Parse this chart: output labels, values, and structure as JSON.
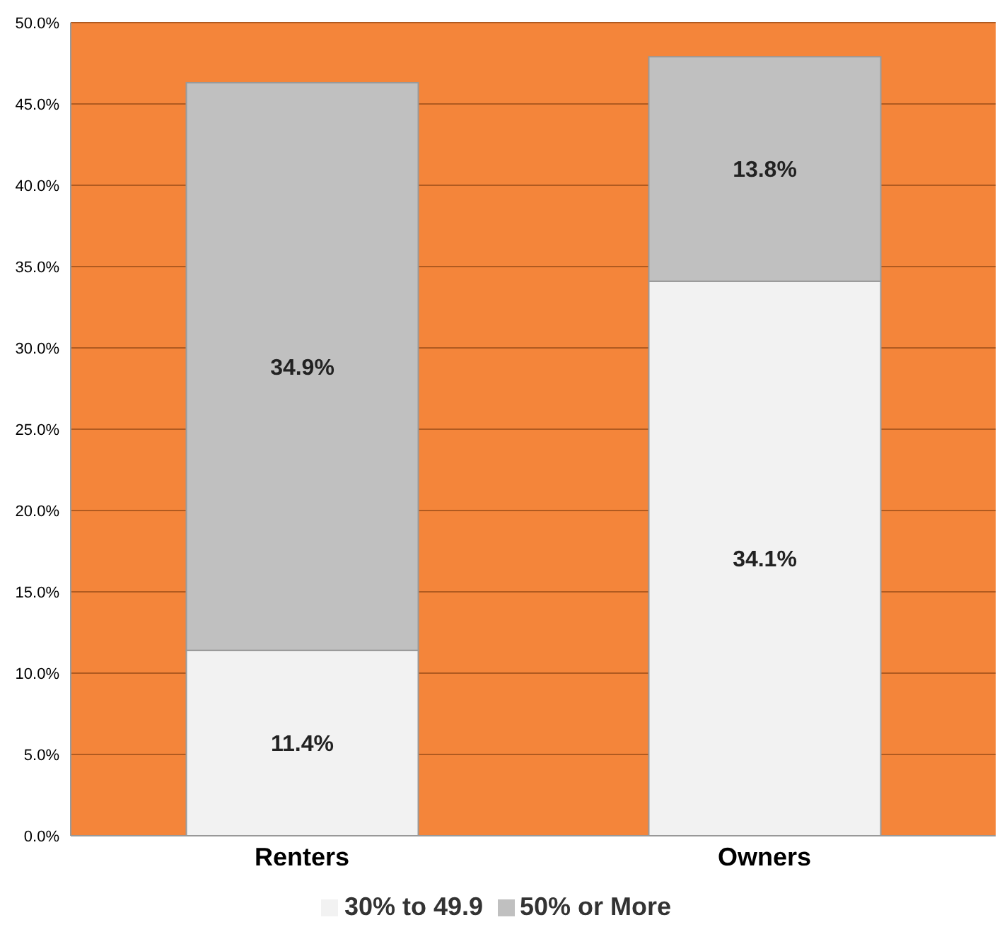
{
  "chart_data": {
    "type": "bar",
    "stacked": true,
    "categories": [
      "Renters",
      "Owners"
    ],
    "series": [
      {
        "name": "30% to 49.9",
        "color": "#f2f2f2",
        "values": [
          11.4,
          34.1
        ],
        "value_labels": [
          "11.4%",
          "34.1%"
        ]
      },
      {
        "name": "50% or More",
        "color": "#c0c0c0",
        "values": [
          34.9,
          13.8
        ],
        "value_labels": [
          "34.9%",
          "13.8%"
        ]
      }
    ],
    "ylim": [
      0,
      50
    ],
    "yticks": [
      {
        "value": 0,
        "label": "0.0%"
      },
      {
        "value": 5,
        "label": "5.0%"
      },
      {
        "value": 10,
        "label": "10.0%"
      },
      {
        "value": 15,
        "label": "15.0%"
      },
      {
        "value": 20,
        "label": "20.0%"
      },
      {
        "value": 25,
        "label": "25.0%"
      },
      {
        "value": 30,
        "label": "30.0%"
      },
      {
        "value": 35,
        "label": "35.0%"
      },
      {
        "value": 40,
        "label": "40.0%"
      },
      {
        "value": 45,
        "label": "45.0%"
      },
      {
        "value": 50,
        "label": "50.0%"
      }
    ],
    "grid": "y",
    "legend": "bottom"
  }
}
